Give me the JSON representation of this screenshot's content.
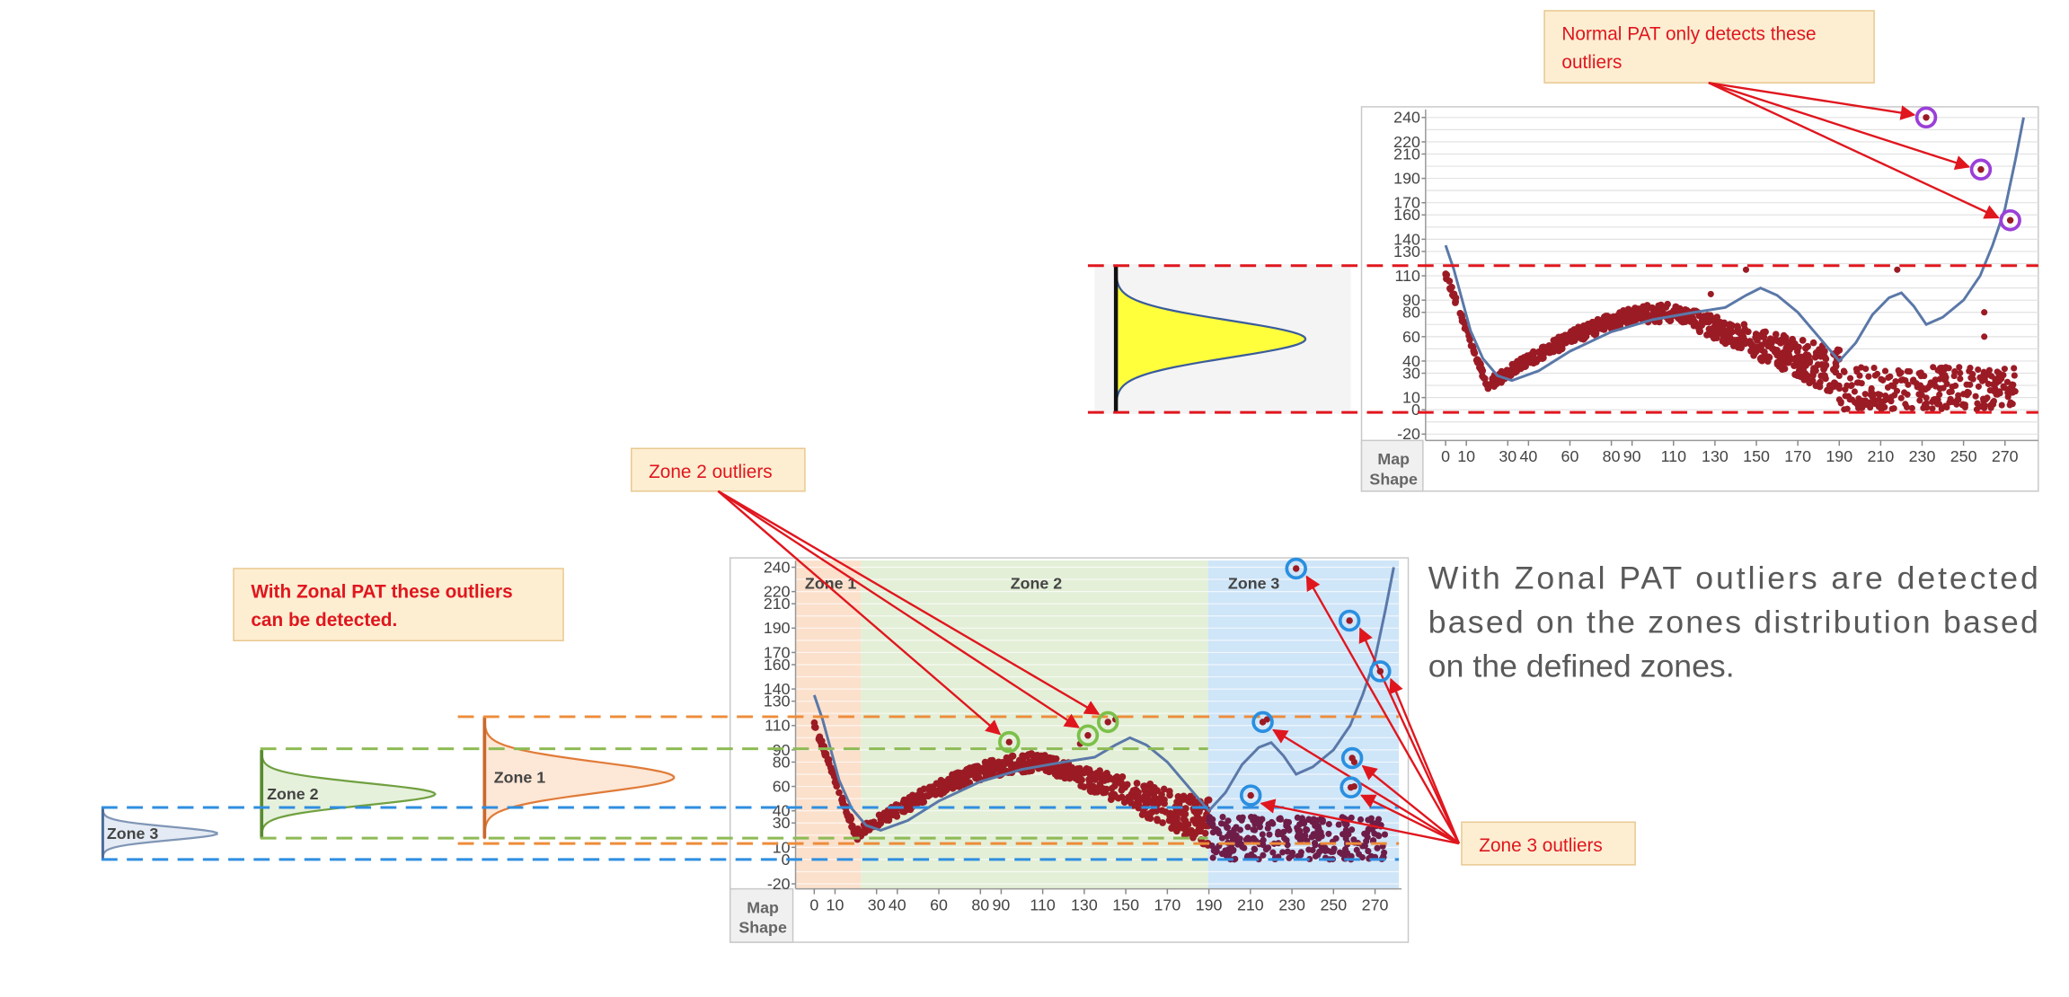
{
  "callouts": {
    "normal": [
      "Normal PAT only detects these",
      "outliers"
    ],
    "zone2": "Zone 2 outliers",
    "zonal": [
      "With Zonal PAT these outliers",
      "can be detected."
    ],
    "zone3": "Zone 3 outliers"
  },
  "description": [
    "With Zonal PAT outliers are detected",
    "based on the zones distribution based",
    "on the defined zones."
  ],
  "axis": {
    "yticks": [
      240,
      220,
      210,
      190,
      170,
      160,
      140,
      130,
      110,
      90,
      80,
      60,
      40,
      30,
      10,
      0,
      -20
    ],
    "xticks": [
      0,
      10,
      30,
      40,
      60,
      80,
      90,
      110,
      130,
      150,
      170,
      190,
      210,
      230,
      250,
      270
    ],
    "map_shape": [
      "Map",
      "Shape"
    ]
  },
  "zones": [
    "Zone 1",
    "Zone 2",
    "Zone 3"
  ],
  "distributions": [
    "Zone 1",
    "Zone 2",
    "Zone 3"
  ]
}
